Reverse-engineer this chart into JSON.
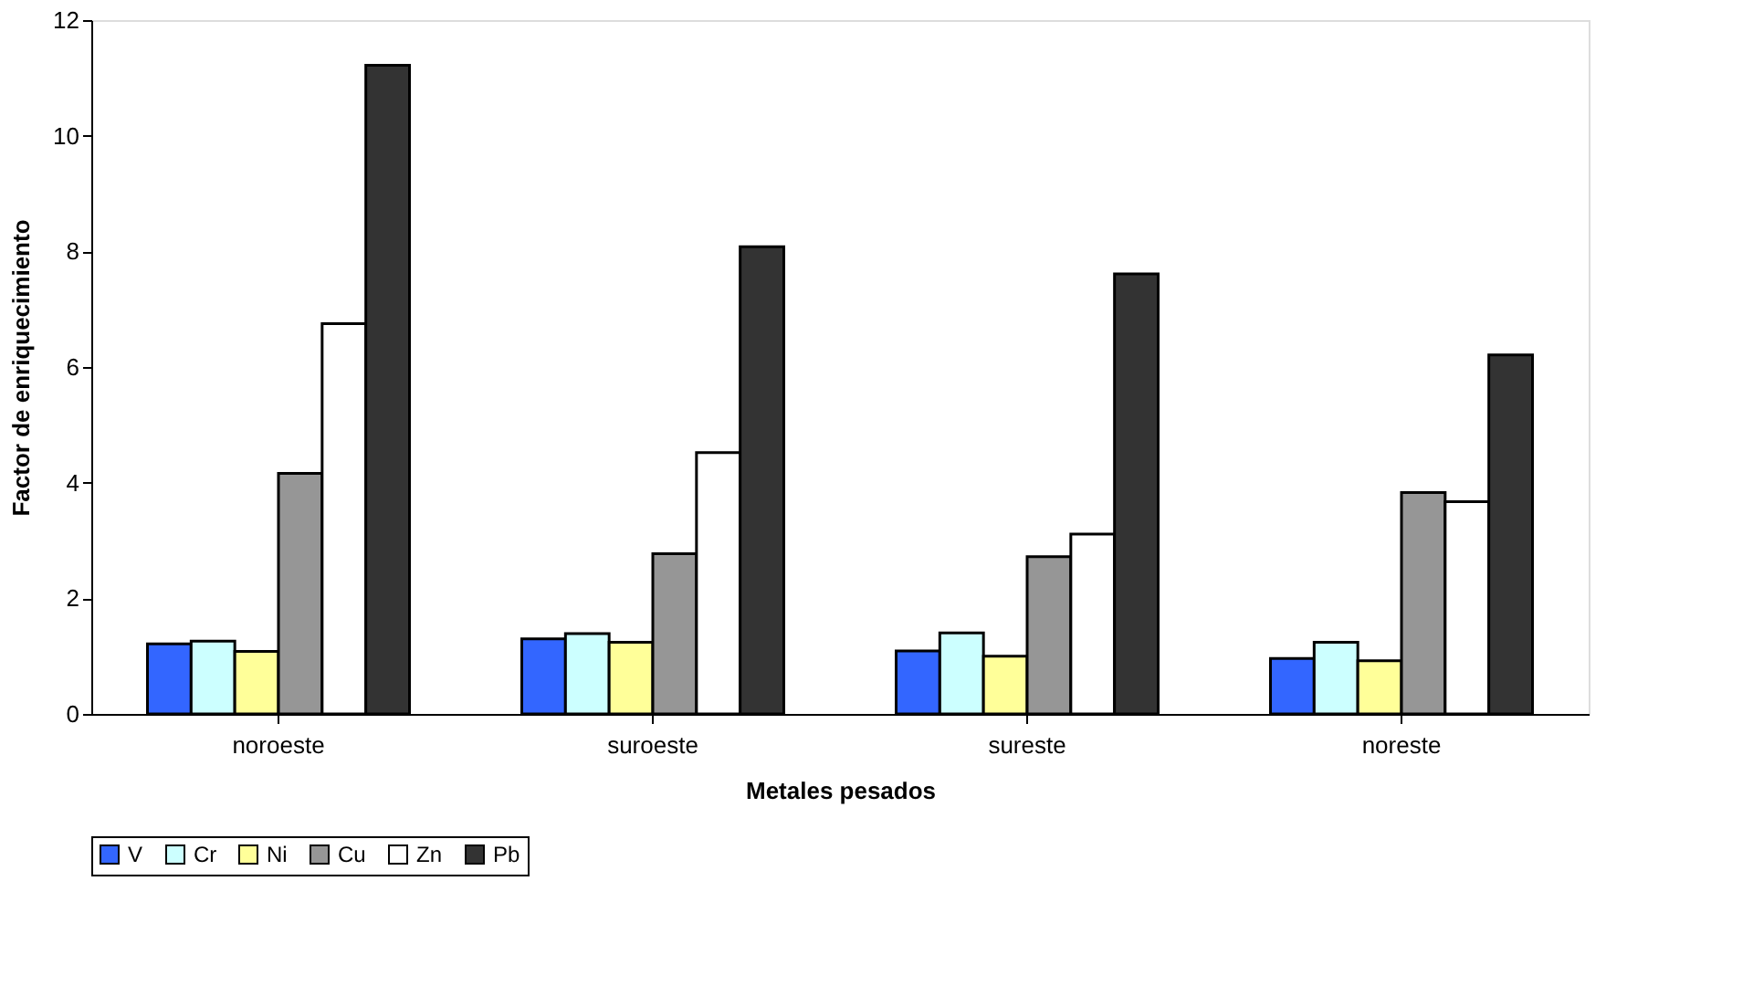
{
  "chart_data": {
    "type": "bar",
    "xlabel": "Metales pesados",
    "ylabel": "Factor de enriquecimiento",
    "categories": [
      "noroeste",
      "suroeste",
      "sureste",
      "noreste"
    ],
    "series": [
      {
        "name": "V",
        "color": "#3366ff",
        "values": [
          1.21,
          1.3,
          1.09,
          0.96
        ]
      },
      {
        "name": "Cr",
        "color": "#ccffff",
        "values": [
          1.26,
          1.39,
          1.4,
          1.24
        ]
      },
      {
        "name": "Ni",
        "color": "#ffff99",
        "values": [
          1.08,
          1.24,
          1.0,
          0.92
        ]
      },
      {
        "name": "Cu",
        "color": "#969696",
        "values": [
          4.16,
          2.77,
          2.72,
          3.83
        ]
      },
      {
        "name": "Zn",
        "color": "#ffffff",
        "values": [
          6.75,
          4.52,
          3.11,
          3.67
        ]
      },
      {
        "name": "Pb",
        "color": "#333333",
        "values": [
          11.22,
          8.08,
          7.61,
          6.21
        ]
      }
    ],
    "ylim": [
      0,
      12
    ],
    "yticks": [
      0,
      2,
      4,
      6,
      8,
      10,
      12
    ],
    "grid": false,
    "legend": "bottom"
  }
}
